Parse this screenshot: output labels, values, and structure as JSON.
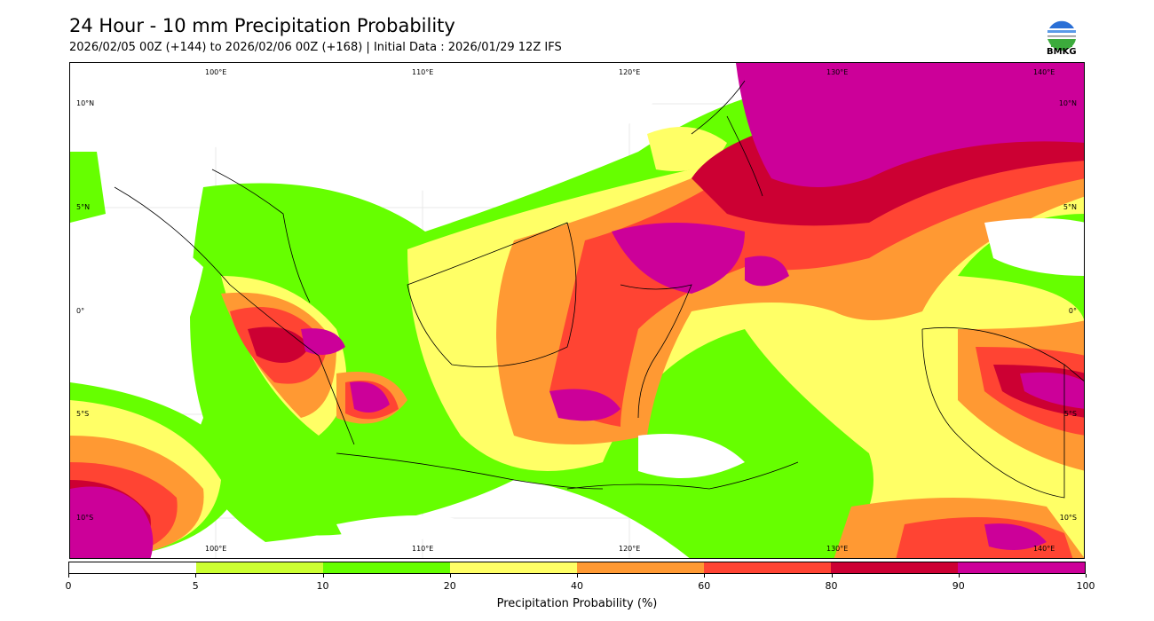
{
  "header": {
    "title": "24 Hour - 10 mm Precipitation Probability",
    "subtitle": "2026/02/05 00Z (+144) to 2026/02/06 00Z (+168) | Initial Data : 2026/01/29 12Z IFS",
    "logo_text": "BMKG"
  },
  "map": {
    "lon_labels": [
      "100°E",
      "110°E",
      "120°E",
      "130°E",
      "140°E"
    ],
    "lat_labels": [
      "10°N",
      "5°N",
      "0°",
      "5°S",
      "10°S"
    ]
  },
  "colorbar": {
    "label": "Precipitation Probability (%)",
    "ticks": [
      "0",
      "5",
      "10",
      "20",
      "40",
      "60",
      "80",
      "90",
      "100"
    ],
    "colors": [
      "#ffffff",
      "#ccff33",
      "#66ff00",
      "#ffff66",
      "#ff9933",
      "#ff4433",
      "#cc0033",
      "#cc0099"
    ]
  }
}
